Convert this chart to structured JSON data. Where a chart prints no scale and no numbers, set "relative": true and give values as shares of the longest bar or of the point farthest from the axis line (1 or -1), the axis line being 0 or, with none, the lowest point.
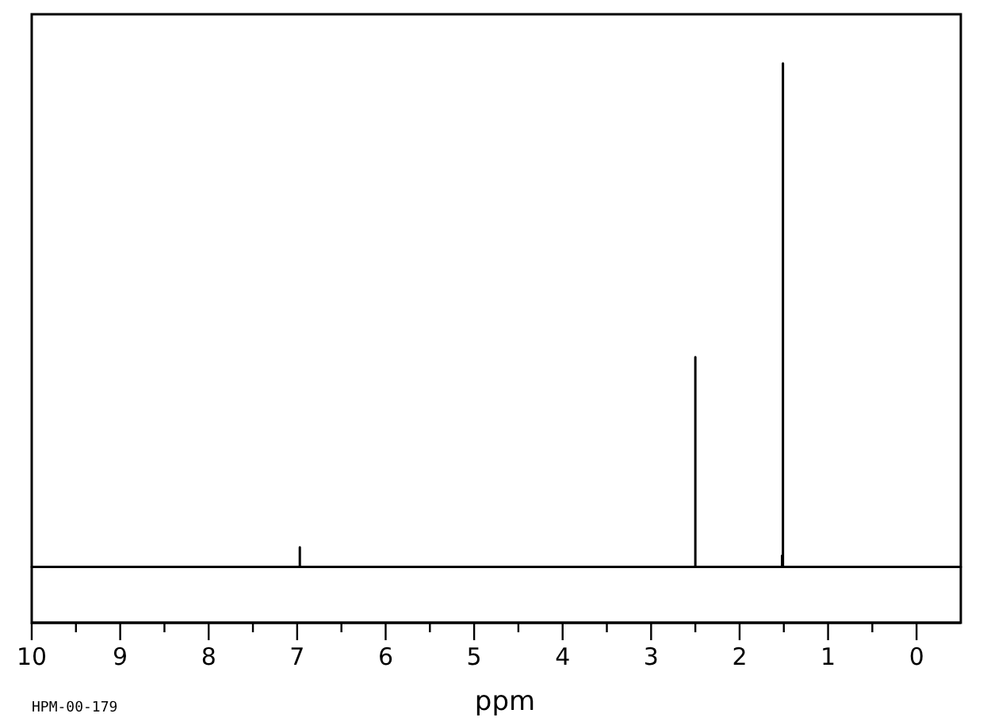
{
  "chart_data": {
    "type": "line",
    "xlabel": "ppm",
    "annotations": [
      "HPM-00-179"
    ],
    "relative": true,
    "color": "#000000",
    "x": [
      10,
      6.97,
      6.97,
      6.97,
      2.5,
      2.5,
      2.5,
      1.52,
      1.52,
      1.51,
      1.51,
      1.51,
      -0.5
    ],
    "values": [
      0.1,
      0.1,
      0.135,
      0.1,
      0.1,
      0.475,
      0.1,
      0.1,
      0.12,
      0.12,
      1,
      0.1,
      0.1
    ],
    "xlim": [
      10,
      -0.5
    ],
    "xticks": [
      10,
      {
        "value": 9.5,
        "label": null
      },
      9,
      {
        "value": 8.5,
        "label": null
      },
      8,
      {
        "value": 7.5,
        "label": null
      },
      7,
      {
        "value": 6.5,
        "label": null
      },
      6,
      {
        "value": 5.5,
        "label": null
      },
      5,
      {
        "value": 4.5,
        "label": null
      },
      4,
      {
        "value": 3.5,
        "label": null
      },
      3,
      {
        "value": 2.5,
        "label": null
      },
      2,
      {
        "value": 1.5,
        "label": null
      },
      1,
      {
        "value": 0.5,
        "label": null
      },
      0
    ]
  }
}
